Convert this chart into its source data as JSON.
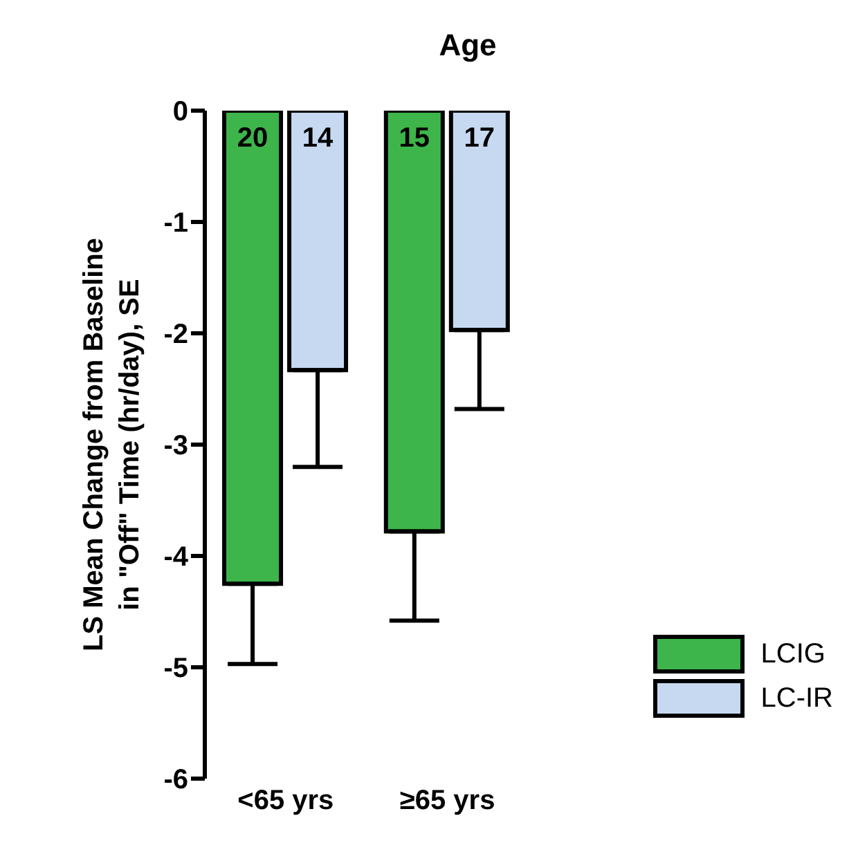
{
  "chart_data": {
    "type": "bar",
    "title": "Age",
    "ylabel": "LS Mean Change from Baseline in \"Off\" Time (hr/day), SE",
    "categories": [
      "<65 yrs",
      "≥65 yrs"
    ],
    "series": [
      {
        "name": "LCIG",
        "color": "#3db54a",
        "values": [
          -4.25,
          -3.78
        ],
        "errors": [
          [
            -4.97,
            -4.25
          ],
          [
            -4.58,
            -3.78
          ]
        ]
      },
      {
        "name": "LC-IR",
        "color": "#c6d9f1",
        "values": [
          -2.33,
          -1.97
        ],
        "errors": [
          [
            -3.2,
            -2.33
          ],
          [
            -2.68,
            -1.97
          ]
        ]
      }
    ],
    "ylim": [
      -6,
      0
    ],
    "yticks": [
      -6,
      -5,
      -4,
      -3,
      -2,
      -1,
      0
    ],
    "grid": false,
    "legend": "bottom right",
    "annotations": [
      "20",
      "14",
      "15",
      "17"
    ]
  }
}
